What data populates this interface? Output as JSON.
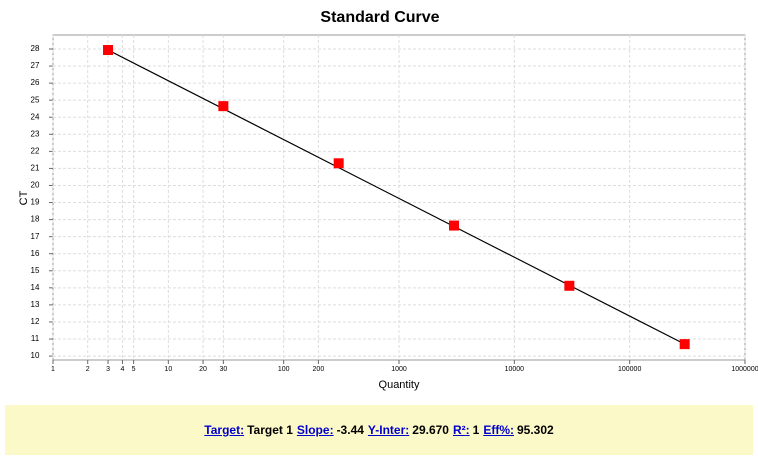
{
  "chart_data": {
    "type": "scatter",
    "title": "Standard Curve",
    "x_label": "Quantity",
    "y_label": "CT",
    "series": [
      {
        "name": "Target 1",
        "color": "#ff0000",
        "x": [
          3,
          30,
          300,
          3000,
          30000,
          300000
        ],
        "values": [
          27.94,
          24.65,
          21.3,
          17.65,
          14.12,
          10.7
        ]
      }
    ],
    "xlim": [
      1,
      1000000
    ],
    "ylim": [
      9.77,
      28.82
    ],
    "log_x": true,
    "grid": true,
    "xticks": [
      1,
      2,
      3,
      4,
      5,
      10,
      20,
      30,
      100,
      200,
      1000,
      10000,
      100000,
      1000000
    ],
    "yticks": [
      10,
      11,
      12,
      13,
      14,
      15,
      16,
      17,
      18,
      19,
      20,
      21,
      22,
      23,
      24,
      25,
      26,
      27,
      28
    ]
  },
  "footer": {
    "items": [
      {
        "label": "Target",
        "value": "Target 1"
      },
      {
        "label": "Slope",
        "value": "-3.44"
      },
      {
        "label": "Y-Inter",
        "value": "29.670"
      },
      {
        "label": "R²",
        "value": "1"
      },
      {
        "label": "Eff%",
        "value": "95.302"
      }
    ]
  }
}
